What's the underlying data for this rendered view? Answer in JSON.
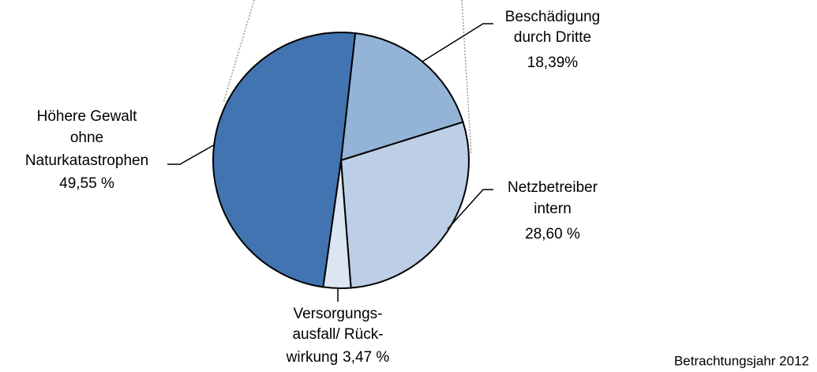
{
  "chart_data": {
    "type": "pie",
    "categories": [
      [
        "Beschädigung",
        "durch Dritte"
      ],
      [
        "Netzbetreiber",
        "intern"
      ],
      [
        "Versorgungs-",
        "ausfall/ Rück-",
        "wirkung"
      ],
      [
        "Höhere Gewalt",
        "ohne",
        "Naturkatastrophen"
      ]
    ],
    "values": [
      18.39,
      28.6,
      3.47,
      49.55
    ],
    "value_labels": [
      "18,39%",
      "28,60 %",
      "3,47 %",
      "49,55 %"
    ],
    "colors": [
      "#93b3d7",
      "#bccfe6",
      "#dce6f2",
      "#4174b0"
    ],
    "note": "Betrachtungsjahr 2012"
  }
}
